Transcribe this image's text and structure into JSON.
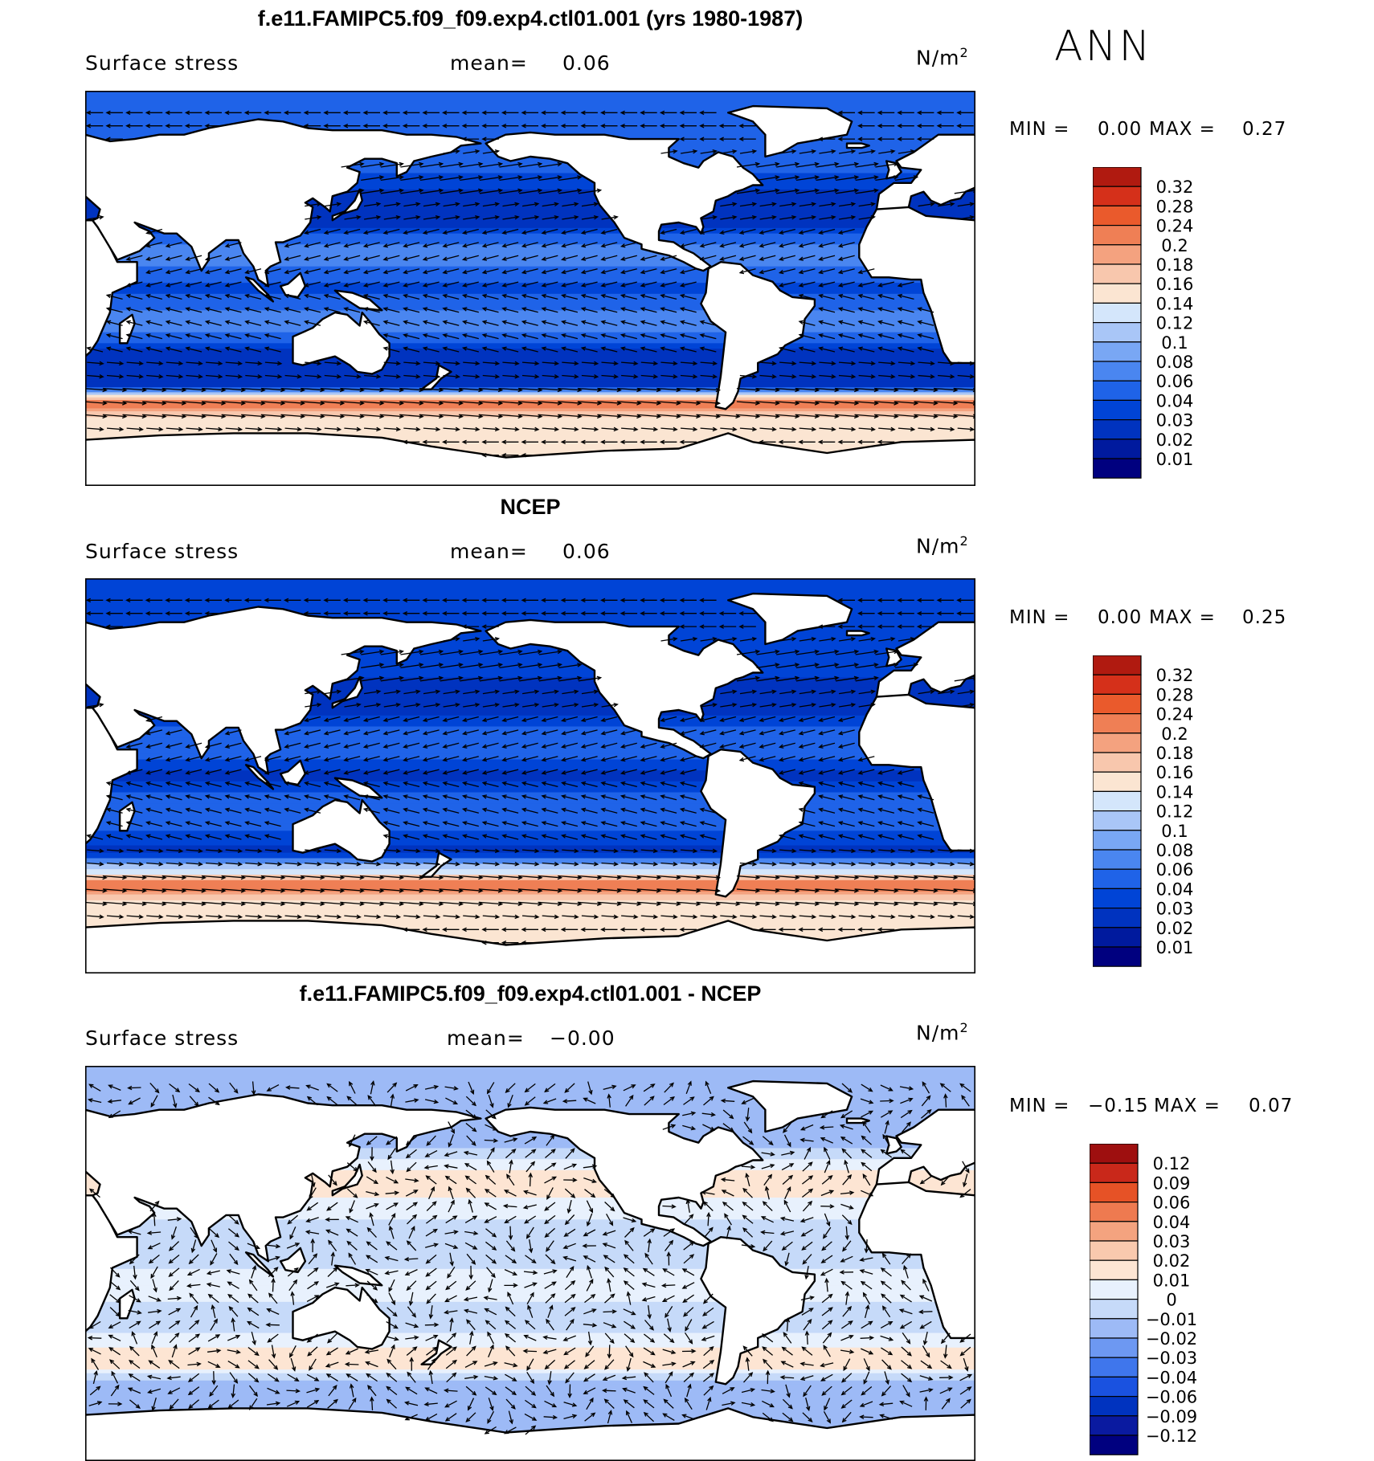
{
  "season": "ANN",
  "colors": {
    "abs_scale": [
      "#00007f",
      "#001a9e",
      "#0033bf",
      "#0044d6",
      "#1f63e8",
      "#4a86f0",
      "#79a7f4",
      "#a9c6f7",
      "#d4e6fb",
      "#fbe5d2",
      "#f8c7ad",
      "#f4a27f",
      "#ef7f55",
      "#ea5a2c",
      "#d5301a",
      "#b01a10",
      "#870a0a"
    ],
    "diff_scale": [
      "#00007f",
      "#0a1aa0",
      "#0033bf",
      "#1a52e0",
      "#3f76ec",
      "#6d98f2",
      "#9dbaf6",
      "#c6daf9",
      "#e8f1fd",
      "#fde5d3",
      "#f9c9ae",
      "#f4a37f",
      "#ee7a50",
      "#e65226",
      "#c9281a",
      "#9e0f0f"
    ],
    "land": "#ffffff",
    "coast": "#000000"
  },
  "panels": [
    {
      "title": "f.e11.FAMIPC5.f09_f09.exp4.ctl01.001 (yrs 1980-1987)",
      "variable": "Surface stress",
      "mean_label": "mean=",
      "mean_value": "0.06",
      "units": "N/m",
      "units_sup": "2",
      "min_label": "MIN =",
      "min_value": "0.00",
      "max_label": "MAX =",
      "max_value": "0.27",
      "colorbar_labels": [
        "0.32",
        "0.28",
        "0.24",
        "0.2",
        "0.18",
        "0.16",
        "0.14",
        "0.12",
        "0.1",
        "0.08",
        "0.06",
        "0.04",
        "0.03",
        "0.02",
        "0.01"
      ]
    },
    {
      "title": "NCEP",
      "variable": "Surface stress",
      "mean_label": "mean=",
      "mean_value": "0.06",
      "units": "N/m",
      "units_sup": "2",
      "min_label": "MIN =",
      "min_value": "0.00",
      "max_label": "MAX =",
      "max_value": "0.25",
      "colorbar_labels": [
        "0.32",
        "0.28",
        "0.24",
        "0.2",
        "0.18",
        "0.16",
        "0.14",
        "0.12",
        "0.1",
        "0.08",
        "0.06",
        "0.04",
        "0.03",
        "0.02",
        "0.01"
      ]
    },
    {
      "title": "f.e11.FAMIPC5.f09_f09.exp4.ctl01.001 - NCEP",
      "variable": "Surface stress",
      "mean_label": "mean=",
      "mean_value": "−0.00",
      "units": "N/m",
      "units_sup": "2",
      "min_label": "MIN =",
      "min_value": "−0.15",
      "max_label": "MAX =",
      "max_value": "0.07",
      "colorbar_labels": [
        "0.12",
        "0.09",
        "0.06",
        "0.04",
        "0.03",
        "0.02",
        "0.01",
        "0",
        "−0.01",
        "−0.02",
        "−0.03",
        "−0.04",
        "−0.06",
        "−0.09",
        "−0.12"
      ]
    }
  ],
  "chart_data": [
    {
      "type": "heatmap",
      "title": "f.e11.FAMIPC5.f09_f09.exp4.ctl01.001 (yrs 1980-1987)",
      "field": "Surface stress",
      "units": "N/m²",
      "mean": 0.06,
      "min": 0.0,
      "max": 0.27,
      "contour_levels": [
        0.01,
        0.02,
        0.03,
        0.04,
        0.06,
        0.08,
        0.1,
        0.12,
        0.14,
        0.16,
        0.18,
        0.2,
        0.24,
        0.28,
        0.32
      ],
      "overlay": "wind stress vectors",
      "zonal_bands": [
        {
          "lat": 60,
          "value": 0.05
        },
        {
          "lat": 45,
          "value": 0.03
        },
        {
          "lat": 30,
          "value": 0.02
        },
        {
          "lat": 15,
          "value": 0.08
        },
        {
          "lat": 0,
          "value": 0.03
        },
        {
          "lat": -15,
          "value": 0.08
        },
        {
          "lat": -30,
          "value": 0.02
        },
        {
          "lat": -45,
          "value": 0.03
        },
        {
          "lat": -52,
          "value": 0.22
        },
        {
          "lat": -60,
          "value": 0.14
        }
      ]
    },
    {
      "type": "heatmap",
      "title": "NCEP",
      "field": "Surface stress",
      "units": "N/m²",
      "mean": 0.06,
      "min": 0.0,
      "max": 0.25,
      "contour_levels": [
        0.01,
        0.02,
        0.03,
        0.04,
        0.06,
        0.08,
        0.1,
        0.12,
        0.14,
        0.16,
        0.18,
        0.2,
        0.24,
        0.28,
        0.32
      ],
      "overlay": "wind stress vectors",
      "zonal_bands": [
        {
          "lat": 45,
          "value": 0.03
        },
        {
          "lat": 30,
          "value": 0.02
        },
        {
          "lat": 15,
          "value": 0.06
        },
        {
          "lat": 0,
          "value": 0.02
        },
        {
          "lat": -15,
          "value": 0.06
        },
        {
          "lat": -35,
          "value": 0.02
        },
        {
          "lat": -50,
          "value": 0.22
        },
        {
          "lat": -58,
          "value": 0.14
        }
      ]
    },
    {
      "type": "heatmap",
      "title": "f.e11.FAMIPC5.f09_f09.exp4.ctl01.001 - NCEP",
      "field": "Surface stress",
      "units": "N/m²",
      "mean": -0.0,
      "min": -0.15,
      "max": 0.07,
      "contour_levels": [
        -0.12,
        -0.09,
        -0.06,
        -0.04,
        -0.03,
        -0.02,
        -0.01,
        0,
        0.01,
        0.02,
        0.03,
        0.04,
        0.06,
        0.09,
        0.12
      ],
      "overlay": "wind stress difference vectors",
      "zonal_bands": [
        {
          "lat": 55,
          "value": -0.02
        },
        {
          "lat": 40,
          "value": 0.02
        },
        {
          "lat": 20,
          "value": 0.0
        },
        {
          "lat": 5,
          "value": -0.01
        },
        {
          "lat": -10,
          "value": 0.01
        },
        {
          "lat": -25,
          "value": -0.01
        },
        {
          "lat": -45,
          "value": 0.02
        },
        {
          "lat": -55,
          "value": -0.02
        }
      ]
    }
  ]
}
